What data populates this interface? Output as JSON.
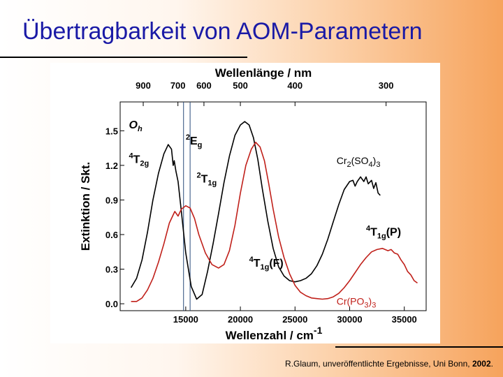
{
  "slide": {
    "title": "Übertragbarkeit von AOM-Parametern",
    "credit_text": "R.Glaum, unveröffentlichte Ergebnisse, Uni Bonn, ",
    "credit_year": "2002",
    "credit_end": "."
  },
  "chart_data": {
    "type": "line",
    "title": "",
    "xlabel": "Wellenzahl / cm",
    "xlabel_sup": "-1",
    "ylabel": "Extinktion  /  Skt.",
    "xlim": [
      9000,
      37000
    ],
    "ylim": [
      -0.06,
      1.75
    ],
    "x_ticks": [
      15000,
      20000,
      25000,
      30000,
      35000
    ],
    "x_tick_labels": [
      "15000",
      "20000",
      "25000",
      "30000",
      "35000"
    ],
    "y_ticks": [
      0.0,
      0.3,
      0.6,
      0.9,
      1.2,
      1.5
    ],
    "y_tick_labels": [
      "0.0",
      "0.3",
      "0.6",
      "0.9",
      "1.2",
      "1.5"
    ],
    "top_axis_label": "Wellenlänge / nm",
    "top_ticks": [
      900,
      700,
      600,
      500,
      400,
      300
    ],
    "top_tick_labels": [
      "900",
      "700",
      "600",
      "500",
      "400",
      "300"
    ],
    "vertical_lines": [
      14800,
      15400
    ],
    "colors": {
      "cr2so43": "#000000",
      "crpo43": "#c0201a",
      "vlines": "#2a4a7a"
    },
    "series": [
      {
        "name": "Cr2(SO4)3",
        "color": "#000000",
        "points": [
          [
            10000,
            0.14
          ],
          [
            10500,
            0.22
          ],
          [
            11000,
            0.38
          ],
          [
            11500,
            0.62
          ],
          [
            12000,
            0.9
          ],
          [
            12500,
            1.13
          ],
          [
            13000,
            1.3
          ],
          [
            13400,
            1.38
          ],
          [
            13700,
            1.34
          ],
          [
            13850,
            1.2
          ],
          [
            13950,
            1.24
          ],
          [
            14100,
            1.15
          ],
          [
            14300,
            1.06
          ],
          [
            14600,
            0.8
          ],
          [
            15000,
            0.44
          ],
          [
            15500,
            0.15
          ],
          [
            16000,
            0.04
          ],
          [
            16500,
            0.08
          ],
          [
            17000,
            0.28
          ],
          [
            17500,
            0.52
          ],
          [
            18000,
            0.78
          ],
          [
            18500,
            1.05
          ],
          [
            19000,
            1.28
          ],
          [
            19500,
            1.46
          ],
          [
            20000,
            1.55
          ],
          [
            20400,
            1.58
          ],
          [
            20800,
            1.55
          ],
          [
            21200,
            1.44
          ],
          [
            21600,
            1.25
          ],
          [
            22000,
            1.0
          ],
          [
            22500,
            0.72
          ],
          [
            23000,
            0.48
          ],
          [
            23500,
            0.32
          ],
          [
            24000,
            0.24
          ],
          [
            24500,
            0.2
          ],
          [
            25000,
            0.19
          ],
          [
            25500,
            0.2
          ],
          [
            26000,
            0.22
          ],
          [
            26500,
            0.26
          ],
          [
            27000,
            0.33
          ],
          [
            27500,
            0.43
          ],
          [
            28000,
            0.56
          ],
          [
            28500,
            0.71
          ],
          [
            29000,
            0.86
          ],
          [
            29500,
            0.99
          ],
          [
            30000,
            1.06
          ],
          [
            30300,
            1.07
          ],
          [
            30500,
            1.02
          ],
          [
            30700,
            1.06
          ],
          [
            31000,
            1.1
          ],
          [
            31300,
            1.06
          ],
          [
            31500,
            1.1
          ],
          [
            31700,
            1.04
          ],
          [
            32000,
            1.07
          ],
          [
            32200,
            1.0
          ],
          [
            32400,
            1.05
          ],
          [
            32600,
            0.96
          ],
          [
            32800,
            0.94
          ]
        ]
      },
      {
        "name": "Cr(PO3)3",
        "color": "#c0201a",
        "points": [
          [
            10000,
            0.02
          ],
          [
            10500,
            0.02
          ],
          [
            11000,
            0.05
          ],
          [
            11500,
            0.12
          ],
          [
            12000,
            0.22
          ],
          [
            12500,
            0.36
          ],
          [
            13000,
            0.52
          ],
          [
            13500,
            0.7
          ],
          [
            14000,
            0.8
          ],
          [
            14300,
            0.76
          ],
          [
            14600,
            0.82
          ],
          [
            15000,
            0.85
          ],
          [
            15400,
            0.83
          ],
          [
            15800,
            0.74
          ],
          [
            16200,
            0.6
          ],
          [
            16800,
            0.44
          ],
          [
            17400,
            0.34
          ],
          [
            18000,
            0.31
          ],
          [
            18500,
            0.34
          ],
          [
            19000,
            0.46
          ],
          [
            19500,
            0.68
          ],
          [
            20000,
            0.96
          ],
          [
            20500,
            1.2
          ],
          [
            21000,
            1.34
          ],
          [
            21400,
            1.4
          ],
          [
            21800,
            1.36
          ],
          [
            22200,
            1.24
          ],
          [
            22600,
            1.04
          ],
          [
            23000,
            0.82
          ],
          [
            23500,
            0.58
          ],
          [
            24000,
            0.4
          ],
          [
            24500,
            0.26
          ],
          [
            25000,
            0.16
          ],
          [
            25500,
            0.1
          ],
          [
            26000,
            0.07
          ],
          [
            26500,
            0.05
          ],
          [
            27000,
            0.045
          ],
          [
            27500,
            0.04
          ],
          [
            28000,
            0.045
          ],
          [
            28500,
            0.06
          ],
          [
            29000,
            0.09
          ],
          [
            29500,
            0.14
          ],
          [
            30000,
            0.2
          ],
          [
            30500,
            0.27
          ],
          [
            31000,
            0.34
          ],
          [
            31500,
            0.4
          ],
          [
            32000,
            0.45
          ],
          [
            32500,
            0.47
          ],
          [
            33000,
            0.48
          ],
          [
            33500,
            0.46
          ],
          [
            33800,
            0.47
          ],
          [
            34100,
            0.44
          ],
          [
            34400,
            0.43
          ],
          [
            34700,
            0.38
          ],
          [
            35000,
            0.34
          ],
          [
            35300,
            0.28
          ],
          [
            35600,
            0.25
          ],
          [
            35900,
            0.2
          ],
          [
            36200,
            0.18
          ]
        ]
      }
    ],
    "annotations": [
      {
        "id": "oh",
        "text": "O",
        "sub": "h",
        "italic": true,
        "x": 9800,
        "y": 1.52
      },
      {
        "id": "4t2g",
        "text": "T",
        "sup": "4",
        "sub": "2g",
        "x": 9800,
        "y": 1.22
      },
      {
        "id": "2eg",
        "text": "E",
        "sup": "2",
        "sub": "g",
        "x": 15000,
        "y": 1.38
      },
      {
        "id": "2t1g",
        "text": "T",
        "sup": "2",
        "sub": "1g",
        "x": 16000,
        "y": 1.05
      },
      {
        "id": "4t1gf",
        "text": "T",
        "sup": "4",
        "sub": "1g",
        "suffix": "(F)",
        "x": 20800,
        "y": 0.32
      },
      {
        "id": "4t1gp",
        "text": "T",
        "sup": "4",
        "sub": "1g",
        "suffix": "(P)",
        "x": 31500,
        "y": 0.59
      },
      {
        "id": "lbl-so4",
        "text": "Cr",
        "sub": "2",
        "suffix": "(SO",
        "sub2": "4",
        "suffix2": ")",
        "sub3": "3",
        "x": 28800,
        "y": 1.21
      },
      {
        "id": "lbl-po3",
        "text": "Cr(PO",
        "sub": "3",
        "suffix": ")",
        "sub2": "3",
        "x": 28800,
        "y": -0.01
      }
    ]
  }
}
